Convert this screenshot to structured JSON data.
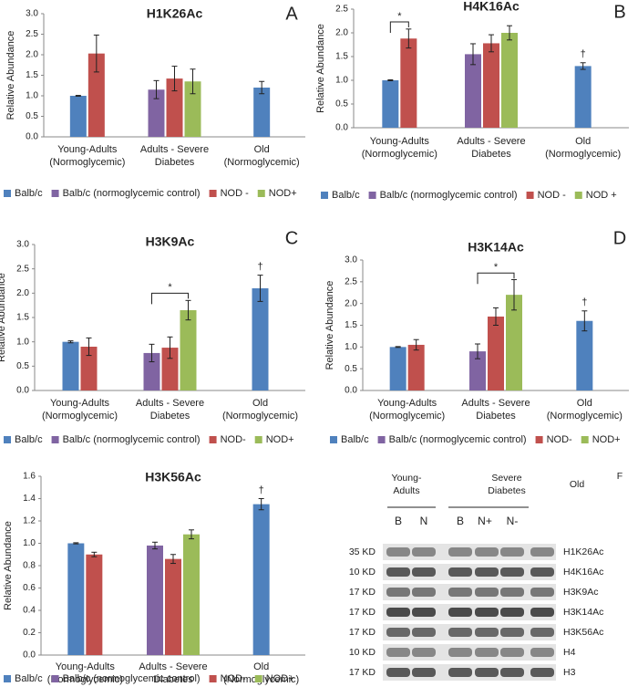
{
  "chart_data": [
    {
      "type": "bar",
      "title": "H1K26Ac",
      "panel_label": "A",
      "y_label": "Relative Abundance",
      "categories": [
        [
          "Young-Adults",
          "(Normoglycemic)"
        ],
        [
          "Adults - Severe",
          "Diabetes"
        ],
        [
          "Old",
          "(Normoglycemic)"
        ]
      ],
      "ylim": [
        0,
        3
      ],
      "yticks": [
        {
          "value": 0,
          "label": "0.0"
        },
        0.5,
        {
          "value": 1,
          "label": "1.0"
        },
        1.5,
        {
          "value": 2,
          "label": "2.0"
        },
        2.5,
        {
          "value": 3,
          "label": "3.0"
        }
      ],
      "series": [
        {
          "name": "Balb/c",
          "color": "#4f81bd",
          "values": [
            1.0,
            null,
            1.2
          ],
          "errors": [
            0.01,
            null,
            0.15
          ]
        },
        {
          "name": "Balb/c (normoglycemic control)",
          "color": "#8064a2",
          "values": [
            null,
            1.15,
            null
          ],
          "errors": [
            null,
            0.22,
            null
          ]
        },
        {
          "name": "NOD -",
          "color": "#c0504d",
          "values": [
            2.03,
            1.42,
            null
          ],
          "errors": [
            0.45,
            0.3,
            null
          ]
        },
        {
          "name": "NOD+",
          "color": "#9bbb59",
          "values": [
            null,
            1.35,
            null
          ],
          "errors": [
            null,
            0.3,
            null
          ]
        }
      ],
      "annotations": []
    },
    {
      "type": "bar",
      "title": "H4K16Ac",
      "panel_label": "B",
      "y_label": "Relative Abundance",
      "categories": [
        [
          "Young-Adults",
          "(Normoglycemic)"
        ],
        [
          "Adults - Severe",
          "Diabetes"
        ],
        [
          "Old",
          "(Normoglycemic)"
        ]
      ],
      "ylim": [
        0,
        2.5
      ],
      "yticks": [
        {
          "value": 0,
          "label": "0.0"
        },
        0.5,
        {
          "value": 1,
          "label": "1.0"
        },
        1.5,
        {
          "value": 2,
          "label": "2.0"
        },
        2.5
      ],
      "series": [
        {
          "name": "Balb/c",
          "color": "#4f81bd",
          "values": [
            1.0,
            null,
            1.3
          ],
          "errors": [
            0.01,
            null,
            0.07
          ]
        },
        {
          "name": "Balb/c (normoglycemic control)",
          "color": "#8064a2",
          "values": [
            null,
            1.55,
            null
          ],
          "errors": [
            null,
            0.22,
            null
          ]
        },
        {
          "name": "NOD -",
          "color": "#c0504d",
          "values": [
            1.88,
            1.78,
            null
          ],
          "errors": [
            0.2,
            0.18,
            null
          ]
        },
        {
          "name": "NOD +",
          "color": "#9bbb59",
          "values": [
            null,
            2.0,
            null
          ],
          "errors": [
            null,
            0.15,
            null
          ]
        }
      ],
      "annotations": [
        "*",
        "†"
      ]
    },
    {
      "type": "bar",
      "title": "H3K9Ac",
      "panel_label": "C",
      "y_label": "Relative Abundance",
      "categories": [
        [
          "Young-Adults",
          "(Normoglycemic)"
        ],
        [
          "Adults - Severe",
          "Diabetes"
        ],
        [
          "Old",
          "(Normoglycemic)"
        ]
      ],
      "ylim": [
        0,
        3
      ],
      "yticks": [
        {
          "value": 0,
          "label": "0.0"
        },
        0.5,
        {
          "value": 1,
          "label": "1.0"
        },
        1.5,
        {
          "value": 2,
          "label": "2.0"
        },
        2.5,
        {
          "value": 3,
          "label": "3.0"
        }
      ],
      "series": [
        {
          "name": "Balb/c",
          "color": "#4f81bd",
          "values": [
            1.0,
            null,
            2.1
          ],
          "errors": [
            0.02,
            null,
            0.27
          ]
        },
        {
          "name": "Balb/c (normoglycemic control)",
          "color": "#8064a2",
          "values": [
            null,
            0.77,
            null
          ],
          "errors": [
            null,
            0.18,
            null
          ]
        },
        {
          "name": "NOD-",
          "color": "#c0504d",
          "values": [
            0.9,
            0.88,
            null
          ],
          "errors": [
            0.18,
            0.22,
            null
          ]
        },
        {
          "name": "NOD+",
          "color": "#9bbb59",
          "values": [
            null,
            1.65,
            null
          ],
          "errors": [
            null,
            0.2,
            null
          ]
        }
      ],
      "annotations": [
        "*",
        "†"
      ]
    },
    {
      "type": "bar",
      "title": "H3K14Ac",
      "panel_label": "D",
      "y_label": "Relative Abundance",
      "categories": [
        [
          "Young-Adults",
          "(Normoglycemic)"
        ],
        [
          "Adults - Severe",
          "Diabetes"
        ],
        [
          "Old",
          "(Normoglycemic)"
        ]
      ],
      "ylim": [
        0,
        3
      ],
      "yticks": [
        {
          "value": 0,
          "label": "0.0"
        },
        0.5,
        {
          "value": 1,
          "label": "1.0"
        },
        1.5,
        {
          "value": 2,
          "label": "2.0"
        },
        2.5,
        {
          "value": 3,
          "label": "3.0"
        }
      ],
      "series": [
        {
          "name": "Balb/c",
          "color": "#4f81bd",
          "values": [
            1.0,
            null,
            1.6
          ],
          "errors": [
            0.01,
            null,
            0.23
          ]
        },
        {
          "name": "Balb/c (normoglycemic control)",
          "color": "#8064a2",
          "values": [
            null,
            0.9,
            null
          ],
          "errors": [
            null,
            0.17,
            null
          ]
        },
        {
          "name": "NOD-",
          "color": "#c0504d",
          "values": [
            1.05,
            1.7,
            null
          ],
          "errors": [
            0.12,
            0.2,
            null
          ]
        },
        {
          "name": "NOD+",
          "color": "#9bbb59",
          "values": [
            null,
            2.2,
            null
          ],
          "errors": [
            null,
            0.35,
            null
          ]
        }
      ],
      "annotations": [
        "*",
        "†"
      ]
    },
    {
      "type": "bar",
      "title": "H3K56Ac",
      "y_label": "Relative Abundance",
      "categories": [
        [
          "Young-Adults",
          "(Normoglycemic)"
        ],
        [
          "Adults - Severe",
          "Diabetes"
        ],
        [
          "Old",
          "(Normoglycemic)"
        ]
      ],
      "ylim": [
        0,
        1.6
      ],
      "yticks": [
        {
          "value": 0,
          "label": "0.0"
        },
        0.2,
        0.4,
        0.6,
        0.8,
        {
          "value": 1,
          "label": "1.0"
        },
        1.2,
        1.4,
        1.6
      ],
      "series": [
        {
          "name": "Balb/c",
          "color": "#4f81bd",
          "values": [
            1.0,
            null,
            1.35
          ],
          "errors": [
            0.005,
            null,
            0.05
          ]
        },
        {
          "name": "Balb/c (normoglycemic control)",
          "color": "#8064a2",
          "values": [
            null,
            0.98,
            null
          ],
          "errors": [
            null,
            0.03,
            null
          ]
        },
        {
          "name": "NOD-",
          "color": "#c0504d",
          "values": [
            0.9,
            0.86,
            null
          ],
          "errors": [
            0.02,
            0.04,
            null
          ]
        },
        {
          "name": "NOD+",
          "color": "#9bbb59",
          "values": [
            null,
            1.08,
            null
          ],
          "errors": [
            null,
            0.04,
            null
          ]
        }
      ],
      "annotations": [
        "†"
      ]
    }
  ],
  "blot": {
    "panel_label": "F",
    "group_labels": [
      [
        "Young-",
        "Adults"
      ],
      [
        "Severe",
        "Diabetes"
      ],
      [
        "Old"
      ]
    ],
    "lane_labels": [
      "B",
      "N",
      "B",
      "N+",
      "N-"
    ],
    "rows": [
      {
        "size": "35 KD",
        "antibody": "H1K26Ac"
      },
      {
        "size": "10 KD",
        "antibody": "H4K16Ac"
      },
      {
        "size": "17 KD",
        "antibody": "H3K9Ac"
      },
      {
        "size": "17 KD",
        "antibody": "H3K14Ac"
      },
      {
        "size": "17 KD",
        "antibody": "H3K56Ac"
      },
      {
        "size": "10 KD",
        "antibody": "H4"
      },
      {
        "size": "17 KD",
        "antibody": "H3"
      }
    ]
  }
}
